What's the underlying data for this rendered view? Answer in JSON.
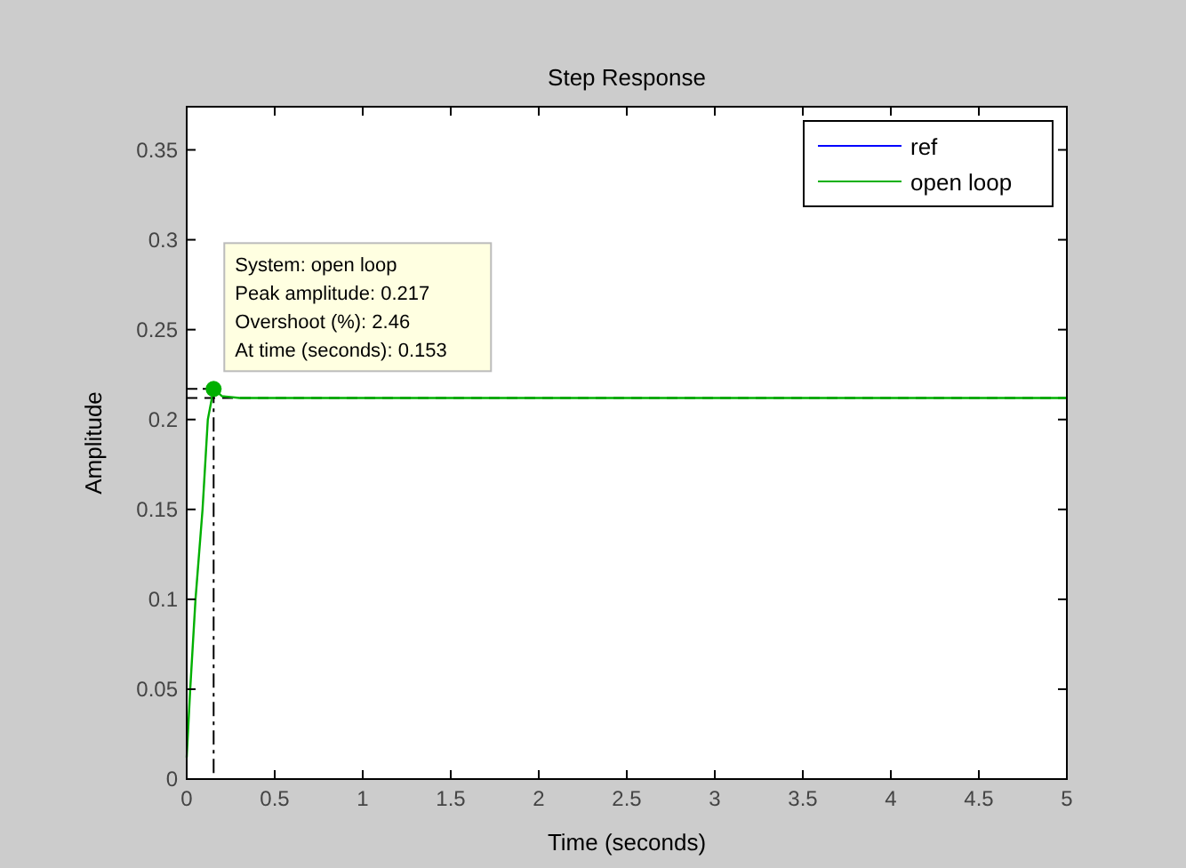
{
  "chart_data": {
    "type": "line",
    "title": "Step Response",
    "xlabel": "Time (seconds)",
    "ylabel": "Amplitude",
    "x": [
      0,
      0.02,
      0.05,
      0.09,
      0.12,
      0.153,
      0.2,
      0.3,
      1,
      2,
      3,
      4,
      5
    ],
    "series": [
      {
        "name": "ref",
        "color": "#0000ff",
        "values": [
          null,
          null,
          null,
          null,
          null,
          null,
          null,
          null,
          null,
          null,
          null,
          null,
          null
        ]
      },
      {
        "name": "open loop",
        "color": "#00b000",
        "values": [
          0.012,
          0.05,
          0.1,
          0.15,
          0.2,
          0.217,
          0.213,
          0.212,
          0.212,
          0.212,
          0.212,
          0.212,
          0.212
        ]
      }
    ],
    "xlim": [
      0,
      5
    ],
    "xticks": [
      0,
      0.5,
      1,
      1.5,
      2,
      2.5,
      3,
      3.5,
      4,
      4.5,
      5
    ],
    "ylim": [
      0,
      0.374
    ],
    "yticks": [
      0,
      0.05,
      0.1,
      0.15,
      0.2,
      0.25,
      0.3,
      0.35
    ],
    "ref_lines": [
      {
        "axis": "y",
        "value": 0.212,
        "color": "#000000",
        "line_style": "dashed"
      }
    ],
    "annotations": [
      {
        "text": "System: open loop\nPeak amplitude: 0.217\nOvershoot (%): 2.46\nAt time (seconds): 0.153",
        "x": 0.153,
        "y": 0.217
      }
    ],
    "legend": "top right",
    "grid": false,
    "marker": "none",
    "line_style": "solid"
  }
}
